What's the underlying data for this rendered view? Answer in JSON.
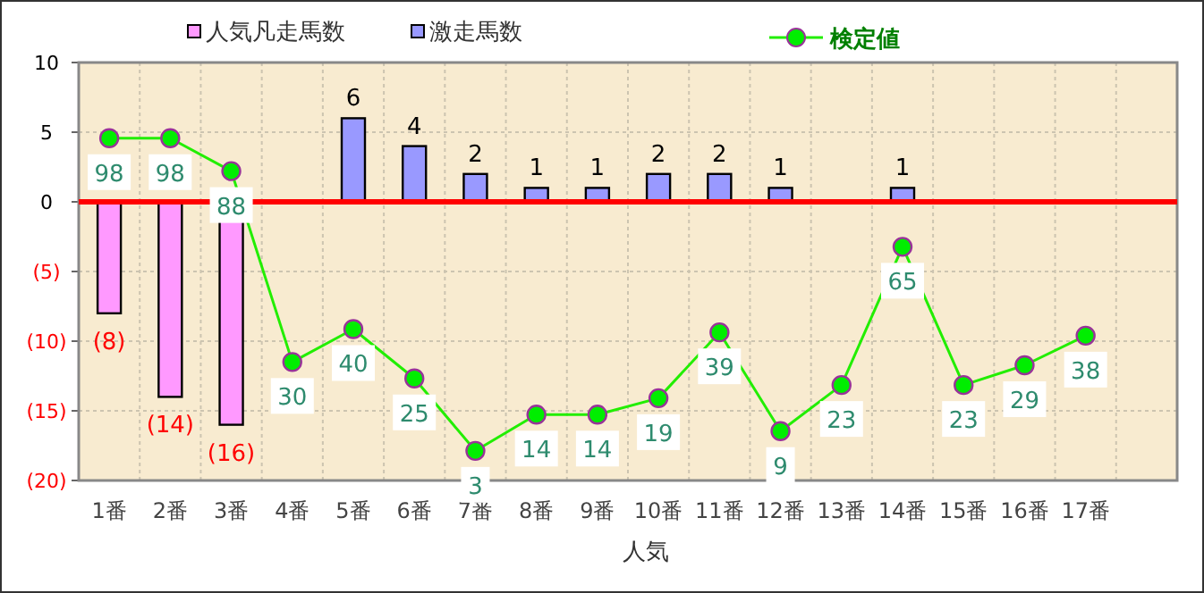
{
  "chart_data": {
    "type": "bar",
    "xlabel": "人気",
    "categories": [
      "1番",
      "2番",
      "3番",
      "4番",
      "5番",
      "6番",
      "7番",
      "8番",
      "9番",
      "10番",
      "11番",
      "12番",
      "13番",
      "14番",
      "15番",
      "16番",
      "17番",
      null
    ],
    "series": [
      {
        "name": "人気凡走馬数",
        "color": "#ff99ff",
        "values": [
          -8,
          -14,
          -16,
          null,
          null,
          null,
          null,
          null,
          null,
          null,
          null,
          null,
          null,
          null,
          null,
          null,
          null,
          null
        ],
        "value_labels": [
          "(8)",
          "(14)",
          "(16)",
          null,
          null,
          null,
          null,
          null,
          null,
          null,
          null,
          null,
          null,
          null,
          null,
          null,
          null,
          null
        ]
      },
      {
        "name": "激走馬数",
        "color": "#9999ff",
        "values": [
          null,
          null,
          null,
          null,
          6,
          4,
          2,
          1,
          1,
          2,
          2,
          1,
          null,
          1,
          null,
          null,
          null,
          null
        ],
        "value_labels": [
          null,
          null,
          null,
          null,
          "6",
          "4",
          "2",
          "1",
          "1",
          "2",
          "2",
          "1",
          null,
          "1",
          null,
          null,
          null,
          null
        ]
      },
      {
        "name": "検定値",
        "type": "line",
        "axis": "y2",
        "color": "#22ee00",
        "values": [
          98,
          98,
          88,
          30,
          40,
          25,
          3,
          14,
          14,
          19,
          39,
          9,
          23,
          65,
          23,
          29,
          38,
          null
        ],
        "value_labels": [
          "98",
          "98",
          "88",
          "30",
          "40",
          "25",
          "3",
          "14",
          "14",
          "19",
          "39",
          "9",
          "23",
          "65",
          "23",
          "29",
          "38",
          null
        ]
      }
    ],
    "ylim": [
      -20,
      10
    ],
    "yticks": [
      {
        "value": -20,
        "label": "(20)"
      },
      {
        "value": -15,
        "label": "(15)"
      },
      {
        "value": -10,
        "label": "(10)"
      },
      {
        "value": -5,
        "label": "(5)"
      },
      0,
      5,
      10
    ],
    "y2lim": [
      -6,
      121
    ],
    "tick_labels": "xy",
    "ref_lines": [
      {
        "axis": "y",
        "value": 0,
        "color": "#ff0000"
      }
    ],
    "grid": true,
    "legend": "top",
    "marker": "circle",
    "line_style": "solid"
  }
}
